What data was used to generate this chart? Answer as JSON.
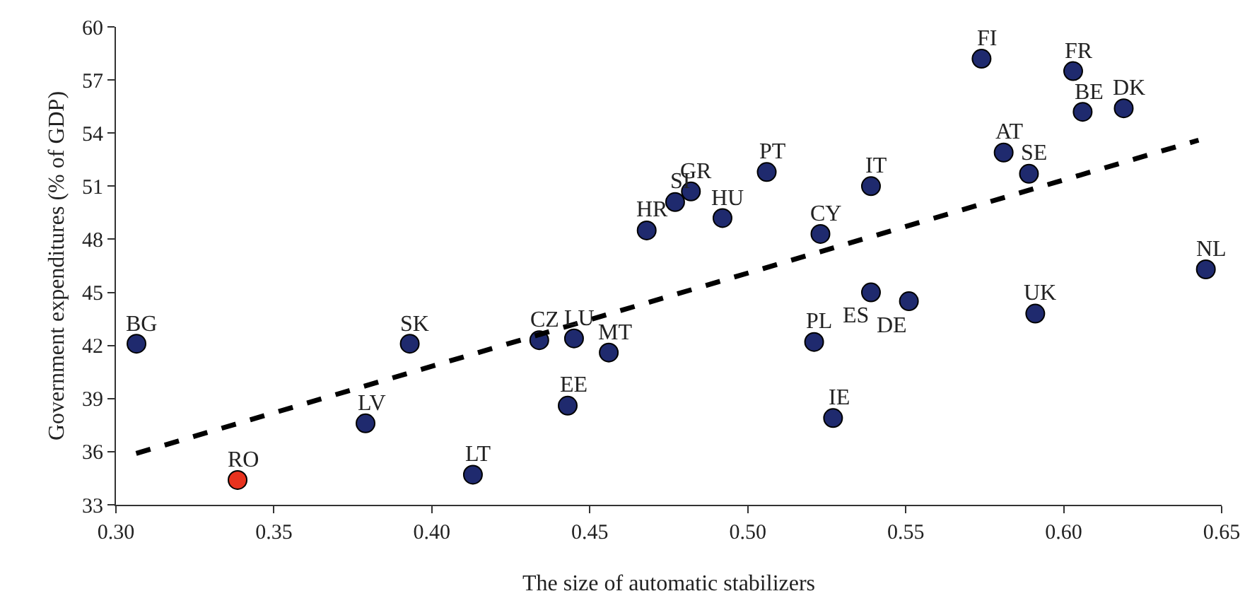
{
  "chart_data": {
    "type": "scatter",
    "xlabel": "The size of automatic stabilizers",
    "ylabel": "Government expenditures (% of GDP)",
    "xlim": [
      0.3,
      0.65
    ],
    "xticks": [
      {
        "value": 0.3,
        "label": "0.30"
      },
      {
        "value": 0.35,
        "label": "0.35"
      },
      {
        "value": 0.4,
        "label": "0.40"
      },
      {
        "value": 0.45,
        "label": "0.45"
      },
      {
        "value": 0.5,
        "label": "0.50"
      },
      {
        "value": 0.55,
        "label": "0.55"
      },
      {
        "value": 0.6,
        "label": "0.60"
      },
      {
        "value": 0.65,
        "label": "0.65"
      }
    ],
    "ylim": [
      33,
      60
    ],
    "yticks": [
      33,
      36,
      39,
      42,
      45,
      48,
      51,
      54,
      57,
      60
    ],
    "series": [
      {
        "marker": "circle",
        "x": [
          0.3065,
          0.3385,
          0.379,
          0.393,
          0.413,
          0.434,
          0.445,
          0.443,
          0.456,
          0.468,
          0.477,
          0.482,
          0.492,
          0.506,
          0.523,
          0.539,
          0.539,
          0.551,
          0.521,
          0.527,
          0.574,
          0.603,
          0.606,
          0.619,
          0.581,
          0.589,
          0.591,
          0.645
        ],
        "values": [
          42.1,
          34.4,
          37.6,
          42.1,
          34.7,
          42.3,
          42.4,
          38.6,
          41.6,
          48.5,
          50.1,
          50.7,
          49.2,
          51.8,
          48.3,
          51.0,
          45.0,
          44.5,
          42.2,
          37.9,
          58.2,
          57.5,
          55.2,
          55.4,
          52.9,
          51.7,
          43.8,
          46.3
        ],
        "colors": [
          "#1f2a6e",
          "#e8321e",
          "#1f2a6e",
          "#1f2a6e",
          "#1f2a6e",
          "#1f2a6e",
          "#1f2a6e",
          "#1f2a6e",
          "#1f2a6e",
          "#1f2a6e",
          "#1f2a6e",
          "#1f2a6e",
          "#1f2a6e",
          "#1f2a6e",
          "#1f2a6e",
          "#1f2a6e",
          "#1f2a6e",
          "#1f2a6e",
          "#1f2a6e",
          "#1f2a6e",
          "#1f2a6e",
          "#1f2a6e",
          "#1f2a6e",
          "#1f2a6e",
          "#1f2a6e",
          "#1f2a6e",
          "#1f2a6e",
          "#1f2a6e"
        ]
      },
      {
        "type": "line",
        "x": [
          0.3064,
          0.6427
        ],
        "values": [
          35.9,
          53.6
        ],
        "color": "#000000",
        "line_style": "dashed"
      }
    ],
    "annotations": [
      {
        "text": "BG",
        "x": 0.3065,
        "y": 42.1
      },
      {
        "text": "RO",
        "x": 0.3385,
        "y": 34.4
      },
      {
        "text": "LV",
        "x": 0.379,
        "y": 37.6
      },
      {
        "text": "SK",
        "x": 0.393,
        "y": 42.1
      },
      {
        "text": "LT",
        "x": 0.413,
        "y": 34.7
      },
      {
        "text": "CZ",
        "x": 0.434,
        "y": 42.3
      },
      {
        "text": "LU",
        "x": 0.445,
        "y": 42.4
      },
      {
        "text": "EE",
        "x": 0.443,
        "y": 38.6
      },
      {
        "text": "MT",
        "x": 0.456,
        "y": 41.6
      },
      {
        "text": "HR",
        "x": 0.468,
        "y": 48.5
      },
      {
        "text": "SI",
        "x": 0.477,
        "y": 50.1
      },
      {
        "text": "GR",
        "x": 0.482,
        "y": 50.7
      },
      {
        "text": "HU",
        "x": 0.492,
        "y": 49.2
      },
      {
        "text": "PT",
        "x": 0.506,
        "y": 51.8
      },
      {
        "text": "CY",
        "x": 0.523,
        "y": 48.3
      },
      {
        "text": "IT",
        "x": 0.539,
        "y": 51.0
      },
      {
        "text": "ES",
        "x": 0.539,
        "y": 45.0
      },
      {
        "text": "DE",
        "x": 0.551,
        "y": 44.5
      },
      {
        "text": "PL",
        "x": 0.521,
        "y": 42.2
      },
      {
        "text": "IE",
        "x": 0.527,
        "y": 37.9
      },
      {
        "text": "FI",
        "x": 0.574,
        "y": 58.2
      },
      {
        "text": "FR",
        "x": 0.603,
        "y": 57.5
      },
      {
        "text": "BE",
        "x": 0.606,
        "y": 55.2
      },
      {
        "text": "DK",
        "x": 0.619,
        "y": 55.4
      },
      {
        "text": "AT",
        "x": 0.581,
        "y": 52.9
      },
      {
        "text": "SE",
        "x": 0.589,
        "y": 51.7
      },
      {
        "text": "UK",
        "x": 0.591,
        "y": 43.8
      },
      {
        "text": "NL",
        "x": 0.645,
        "y": 46.3
      }
    ]
  }
}
